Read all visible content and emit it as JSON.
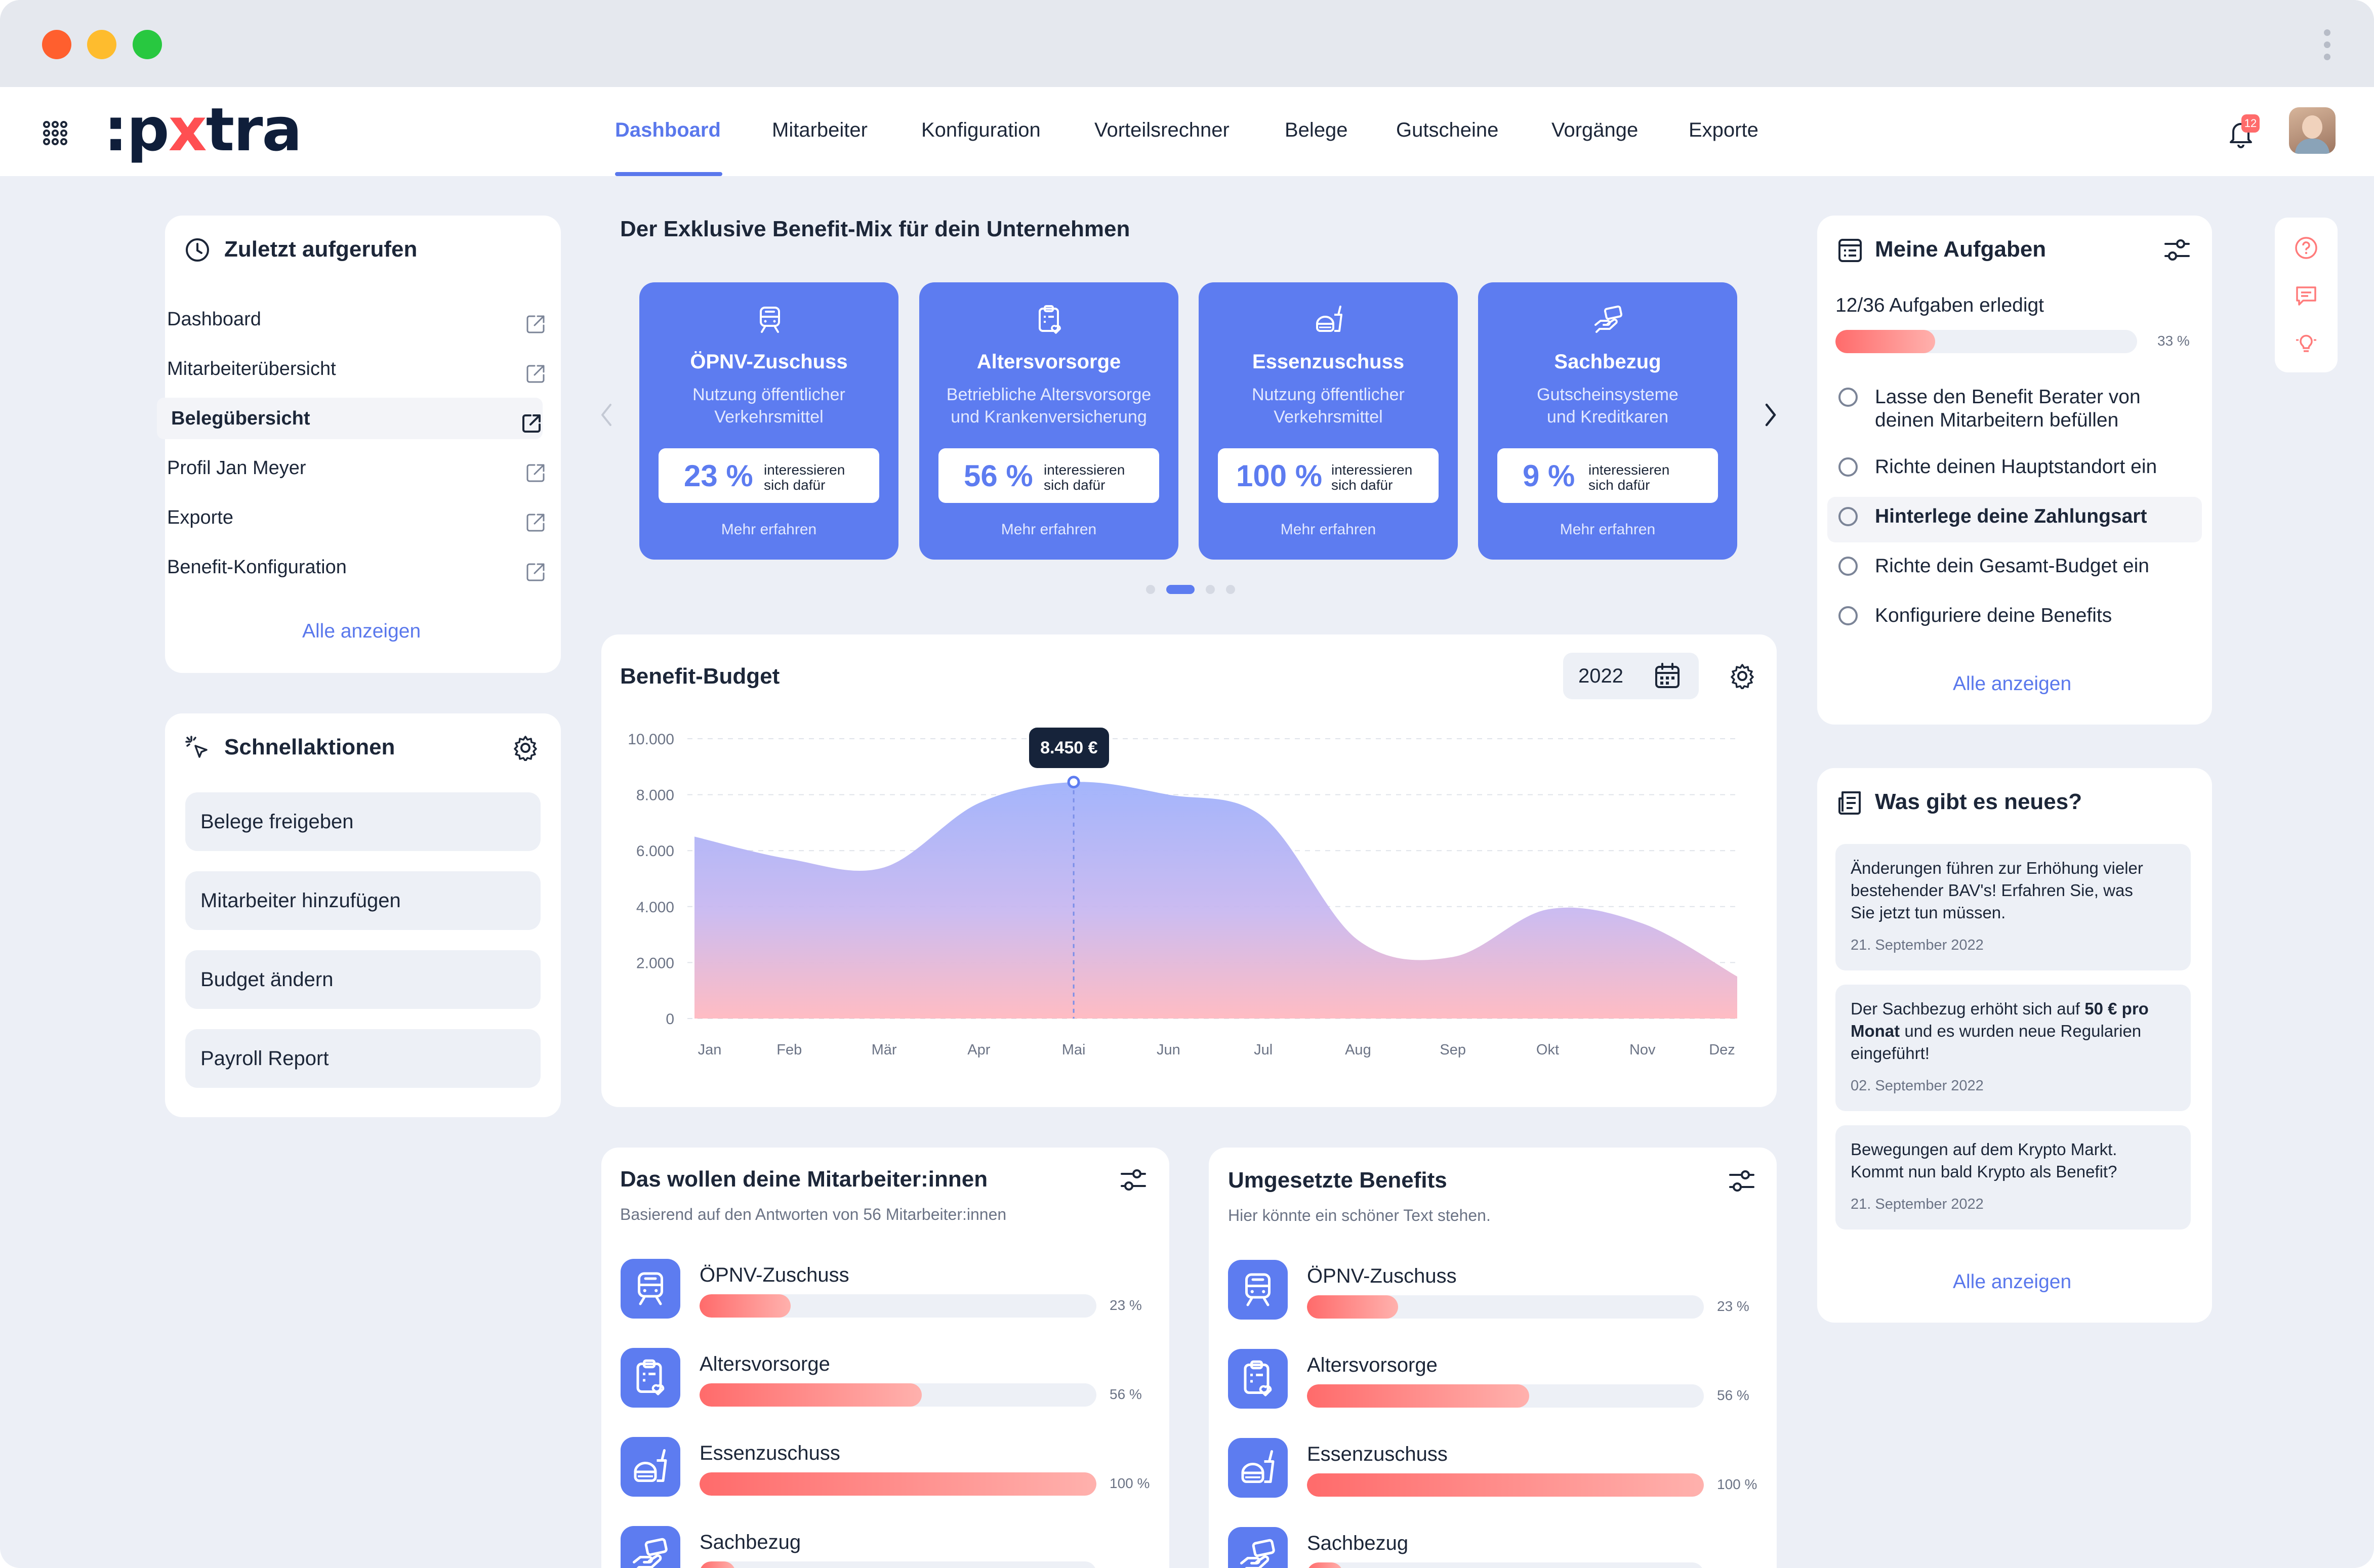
{
  "app": {
    "logo_prefix": ":p",
    "logo_x": "x",
    "logo_suffix": "tra",
    "notifications_count": "12",
    "colors": {
      "accent": "#5a78ec",
      "card_blue": "#5d7cf0",
      "alert": "#ff5d5d",
      "background": "#eceff6"
    }
  },
  "nav": {
    "tabs": [
      {
        "label": "Dashboard",
        "active": true
      },
      {
        "label": "Mitarbeiter"
      },
      {
        "label": "Konfiguration"
      },
      {
        "label": "Vorteilsrechner"
      },
      {
        "label": "Belege"
      },
      {
        "label": "Gutscheine"
      },
      {
        "label": "Vorgänge"
      },
      {
        "label": "Exporte"
      }
    ]
  },
  "recent": {
    "title": "Zuletzt aufgerufen",
    "items": [
      "Dashboard",
      "Mitarbeiterübersicht",
      "Belegübersicht",
      "Profil Jan Meyer",
      "Exporte",
      "Benefit-Konfiguration"
    ],
    "show_all": "Alle anzeigen"
  },
  "quick": {
    "title": "Schnellaktionen",
    "actions": [
      "Belege freigeben",
      "Mitarbeiter hinzufügen",
      "Budget ändern",
      "Payroll Report"
    ]
  },
  "benefits_mix": {
    "title": "Der Exklusive Benefit-Mix für dein Unternehmen",
    "cards": [
      {
        "title": "ÖPNV-Zuschuss",
        "desc": [
          "Nutzung öffentlicher",
          "Verkehrsmittel"
        ],
        "pct": "23 %",
        "interest": [
          "interessieren",
          "sich dafür"
        ],
        "more": "Mehr erfahren",
        "icon": "train-icon"
      },
      {
        "title": "Altersvorsorge",
        "desc": [
          "Betriebliche Altersvorsorge",
          "und Krankenversicherung"
        ],
        "pct": "56 %",
        "interest": [
          "interessieren",
          "sich dafür"
        ],
        "more": "Mehr erfahren",
        "icon": "clipboard-heart-icon"
      },
      {
        "title": "Essenzuschuss",
        "desc": [
          "Nutzung öffentlicher",
          "Verkehrsmittel"
        ],
        "pct": "100 %",
        "interest": [
          "interessieren",
          "sich dafür"
        ],
        "more": "Mehr erfahren",
        "icon": "food-icon"
      },
      {
        "title": "Sachbezug",
        "desc": [
          "Gutscheinsysteme",
          "und Kreditkaren"
        ],
        "pct": "9 %",
        "interest": [
          "interessieren",
          "sich dafür"
        ],
        "more": "Mehr erfahren",
        "icon": "hand-card-icon"
      }
    ],
    "active_page": 1,
    "pages": 4
  },
  "budget": {
    "title": "Benefit-Budget",
    "year": "2022",
    "tooltip": "8.450 €"
  },
  "chart_data": {
    "type": "area",
    "categories": [
      "Jan",
      "Feb",
      "Mär",
      "Apr",
      "Mai",
      "Jun",
      "Jul",
      "Aug",
      "Sep",
      "Okt",
      "Nov",
      "Dez"
    ],
    "values": [
      6500,
      5700,
      5400,
      7700,
      8450,
      8000,
      7200,
      2800,
      2200,
      3900,
      3400,
      1500
    ],
    "ylim": [
      0,
      10000
    ],
    "yticks": [
      "0",
      "2.000",
      "4.000",
      "6.000",
      "8.000",
      "10.000"
    ],
    "highlight_index": 4,
    "grid": true
  },
  "wants": {
    "title": "Das wollen deine Mitarbeiter:innen",
    "subtitle": "Basierend auf den Antworten von 56 Mitarbeiter:innen",
    "rows": [
      {
        "label": "ÖPNV-Zuschuss",
        "value": 23,
        "pct": "23 %",
        "icon": "train-icon"
      },
      {
        "label": "Altersvorsorge",
        "value": 56,
        "pct": "56 %",
        "icon": "clipboard-heart-icon"
      },
      {
        "label": "Essenzuschuss",
        "value": 100,
        "pct": "100 %",
        "icon": "food-icon"
      },
      {
        "label": "Sachbezug",
        "value": 9,
        "pct": "",
        "icon": "hand-card-icon"
      }
    ]
  },
  "implemented": {
    "title": "Umgesetzte Benefits",
    "subtitle": "Hier könnte ein schöner Text stehen.",
    "rows": [
      {
        "label": "ÖPNV-Zuschuss",
        "value": 23,
        "pct": "23 %",
        "icon": "train-icon"
      },
      {
        "label": "Altersvorsorge",
        "value": 56,
        "pct": "56 %",
        "icon": "clipboard-heart-icon"
      },
      {
        "label": "Essenzuschuss",
        "value": 100,
        "pct": "100 %",
        "icon": "food-icon"
      },
      {
        "label": "Sachbezug",
        "value": 9,
        "pct": "",
        "icon": "hand-card-icon"
      }
    ]
  },
  "tasks": {
    "title": "Meine Aufgaben",
    "progress_text": "12/36 Aufgaben erledigt",
    "progress_value": 33,
    "progress_label": "33 %",
    "items": [
      {
        "lines": [
          "Lasse den Benefit Berater von",
          "deinen Mitarbeitern befüllen"
        ]
      },
      {
        "lines": [
          "Richte deinen Hauptstandort ein"
        ]
      },
      {
        "lines": [
          "Hinterlege deine Zahlungsart"
        ],
        "highlight": true
      },
      {
        "lines": [
          "Richte dein Gesamt-Budget  ein"
        ]
      },
      {
        "lines": [
          "Konfiguriere deine Benefits"
        ]
      }
    ],
    "show_all": "Alle anzeigen"
  },
  "news": {
    "title": "Was gibt es neues?",
    "items": [
      {
        "lines": [
          "Änderungen führen zur Erhöhung vieler",
          "bestehender BAV's! Erfahren Sie, was",
          "Sie jetzt tun müssen."
        ],
        "date": "21. September 2022"
      },
      {
        "lines_rich": [
          [
            "Der Sachbezug erhöht sich auf ",
            "50 € pro"
          ],
          [
            "Monat",
            " und es wurden neue Regularien"
          ],
          [
            "eingeführt!",
            ""
          ]
        ],
        "date": "02. September 2022"
      },
      {
        "lines": [
          "Bewegungen auf dem Krypto Markt.",
          "Kommt nun bald Krypto als Benefit?"
        ],
        "date": "21. September 2022"
      }
    ],
    "show_all": "Alle anzeigen"
  }
}
